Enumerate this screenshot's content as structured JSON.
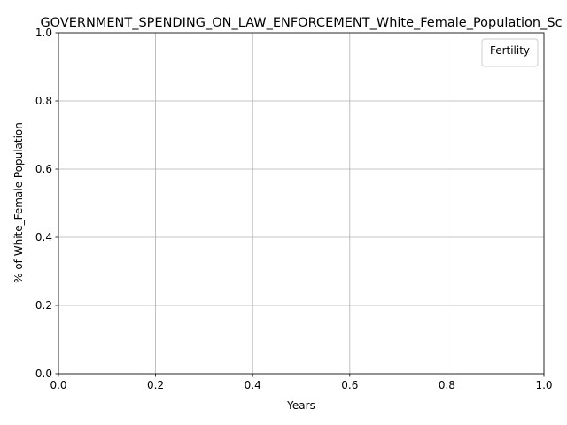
{
  "chart_data": {
    "type": "line",
    "title": "GOVERNMENT_SPENDING_ON_LAW_ENFORCEMENT_White_Female_Population_Sc",
    "xlabel": "Years",
    "ylabel": "% of White_Female Population",
    "xlim": [
      0.0,
      1.0
    ],
    "ylim": [
      0.0,
      1.0
    ],
    "x_ticks": [
      "0.0",
      "0.2",
      "0.4",
      "0.6",
      "0.8",
      "1.0"
    ],
    "y_ticks": [
      "0.0",
      "0.2",
      "0.4",
      "0.6",
      "0.8",
      "1.0"
    ],
    "grid": true,
    "legend": {
      "title": "Fertility",
      "placement": "top-right",
      "entries": []
    },
    "series": []
  }
}
